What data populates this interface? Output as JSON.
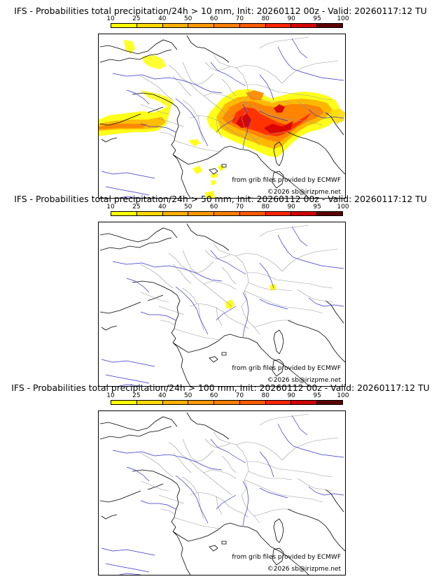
{
  "colors": {
    "c10": "#ffff00",
    "c25": "#ffd900",
    "c40": "#ffb000",
    "c50": "#ff9800",
    "c60": "#ff7e00",
    "c70": "#ff5a00",
    "c80": "#ff2400",
    "c90": "#d40000",
    "c95": "#9c0000",
    "c100": "#5c0000",
    "borders": "#9a9a9a",
    "rivers": "#3333cc",
    "coast": "#000000"
  },
  "colorbar": {
    "ticks": [
      "10",
      "25",
      "40",
      "50",
      "60",
      "70",
      "80",
      "90",
      "95",
      "100"
    ]
  },
  "panels": [
    {
      "title": "IFS - Probabilities total precipitation/24h > 10 mm, Init: 20260112 00z - Valid: 20260117:12 TU",
      "credit_source": "from grib files provided by ECMWF",
      "credit_copyright": "©2026 sb@irizpme.net"
    },
    {
      "title": "IFS - Probabilities total precipitation/24h > 50 mm, Init: 20260112 00z - Valid: 20260117:12 TU",
      "credit_source": "from grib files provided by ECMWF",
      "credit_copyright": "©2026 sb@irizpme.net"
    },
    {
      "title": "IFS - Probabilities total precipitation/24h > 100 mm, Init: 20260112 00z - Valid: 20260117:12 TU",
      "credit_source": "from grib files provided by ECMWF",
      "credit_copyright": "©2026 sb@irizpme.net"
    }
  ]
}
